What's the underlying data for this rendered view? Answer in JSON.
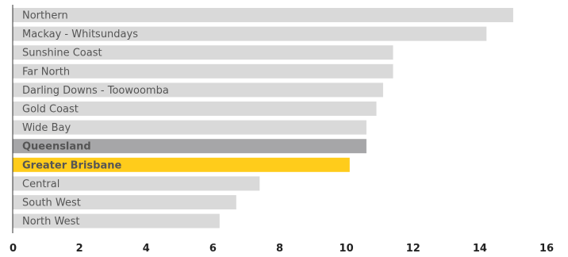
{
  "chart_data": {
    "type": "bar",
    "orientation": "horizontal",
    "title": "",
    "xlabel": "",
    "ylabel": "",
    "categories": [
      "Northern",
      "Mackay - Whitsundays",
      "Sunshine Coast",
      "Far North",
      "Darling Downs - Toowoomba",
      "Gold Coast",
      "Wide Bay",
      "Queensland",
      "Greater Brisbane",
      "Central",
      "South West",
      "North West"
    ],
    "values": [
      15.0,
      14.2,
      11.4,
      11.4,
      11.1,
      10.9,
      10.6,
      10.6,
      10.1,
      7.4,
      6.7,
      6.2
    ],
    "highlight": {
      "Queensland": "#a6a6a8",
      "Greater Brisbane": "#ffcc1b"
    },
    "default_color": "#d9d9d9",
    "label_colors": {
      "default": "#555555",
      "Queensland": "#ffffff",
      "Greater Brisbane": "#222222"
    },
    "xlim": [
      0,
      16
    ],
    "xticks": [
      "0",
      "2",
      "4",
      "6",
      "8",
      "10",
      "12",
      "14",
      "16"
    ],
    "grid": false,
    "legend": "none"
  }
}
